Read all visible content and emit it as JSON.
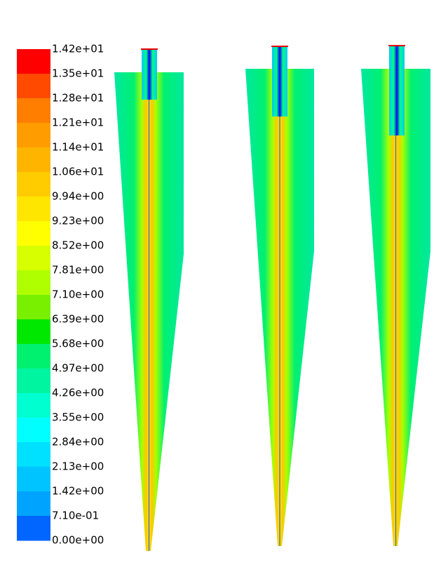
{
  "colorbar": {
    "labels": [
      "1.42e+01",
      "1.35e+01",
      "1.28e+01",
      "1.21e+01",
      "1.14e+01",
      "1.06e+01",
      "9.94e+00",
      "9.23e+00",
      "8.52e+00",
      "7.81e+00",
      "7.10e+00",
      "6.39e+00",
      "5.68e+00",
      "4.97e+00",
      "4.26e+00",
      "3.55e+00",
      "2.84e+00",
      "2.13e+00",
      "1.42e+00",
      "7.10e-01",
      "0.00e+00"
    ],
    "colors": [
      "#ff0000",
      "#ff4a00",
      "#ff7e00",
      "#ff9c00",
      "#ffb400",
      "#ffcc00",
      "#ffe600",
      "#ffff00",
      "#d8ff00",
      "#b0ff00",
      "#78f000",
      "#00e800",
      "#00f070",
      "#00f5a0",
      "#00ffd0",
      "#00ffff",
      "#00e0ff",
      "#00c4ff",
      "#00a4ff",
      "#0066ff"
    ]
  }
}
